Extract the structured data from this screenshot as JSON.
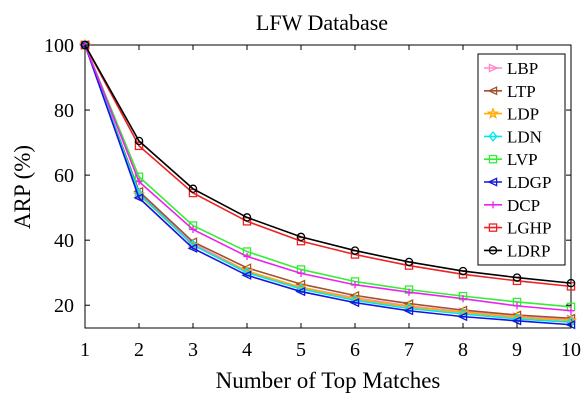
{
  "chart_data": {
    "type": "line",
    "title": "LFW Database",
    "xlabel": "Number of Top Matches",
    "ylabel": "ARP (%)",
    "xlim": [
      1,
      10
    ],
    "ylim": [
      13,
      100
    ],
    "xticks": [
      1,
      2,
      3,
      4,
      5,
      6,
      7,
      8,
      9,
      10
    ],
    "yticks": [
      20,
      40,
      60,
      80,
      100
    ],
    "grid": false,
    "legend_position": "top-right",
    "x": [
      1,
      2,
      3,
      4,
      5,
      6,
      7,
      8,
      9,
      10
    ],
    "series": [
      {
        "name": "LBP",
        "color": "#ff88cc",
        "marker": "triangle-right",
        "values": [
          100,
          54.5,
          39.0,
          30.5,
          25.5,
          22.3,
          19.8,
          18.0,
          16.5,
          15.8
        ]
      },
      {
        "name": "LTP",
        "color": "#a0522d",
        "marker": "triangle-left",
        "values": [
          100,
          55.0,
          39.5,
          31.5,
          26.5,
          23.0,
          20.5,
          18.5,
          17.0,
          16.0
        ]
      },
      {
        "name": "LDP",
        "color": "#ffaa00",
        "marker": "star",
        "values": [
          100,
          54.0,
          38.5,
          30.5,
          25.5,
          22.0,
          19.5,
          17.8,
          16.3,
          15.3
        ]
      },
      {
        "name": "LDN",
        "color": "#00e5ee",
        "marker": "diamond",
        "values": [
          100,
          54.3,
          38.5,
          30.0,
          25.0,
          21.5,
          19.0,
          17.3,
          15.8,
          14.8
        ]
      },
      {
        "name": "LVP",
        "color": "#33ee33",
        "marker": "square",
        "values": [
          100,
          59.5,
          44.5,
          36.5,
          31.0,
          27.3,
          24.8,
          22.8,
          21.0,
          19.5
        ]
      },
      {
        "name": "LDGP",
        "color": "#1515dd",
        "marker": "triangle-left",
        "values": [
          100,
          53.0,
          37.5,
          29.2,
          24.2,
          20.8,
          18.3,
          16.5,
          15.2,
          14.0
        ]
      },
      {
        "name": "DCP",
        "color": "#ee22ee",
        "marker": "plus",
        "values": [
          100,
          58.0,
          43.3,
          35.0,
          29.8,
          26.3,
          24.0,
          22.0,
          19.8,
          18.3
        ]
      },
      {
        "name": "LGHP",
        "color": "#ee2222",
        "marker": "square",
        "values": [
          100,
          69.0,
          54.5,
          45.8,
          39.7,
          35.6,
          32.2,
          29.5,
          27.5,
          25.8
        ]
      },
      {
        "name": "LDRP",
        "color": "#000000",
        "marker": "circle",
        "values": [
          100,
          70.5,
          55.8,
          47.0,
          41.0,
          36.8,
          33.3,
          30.5,
          28.5,
          26.8
        ]
      }
    ]
  }
}
